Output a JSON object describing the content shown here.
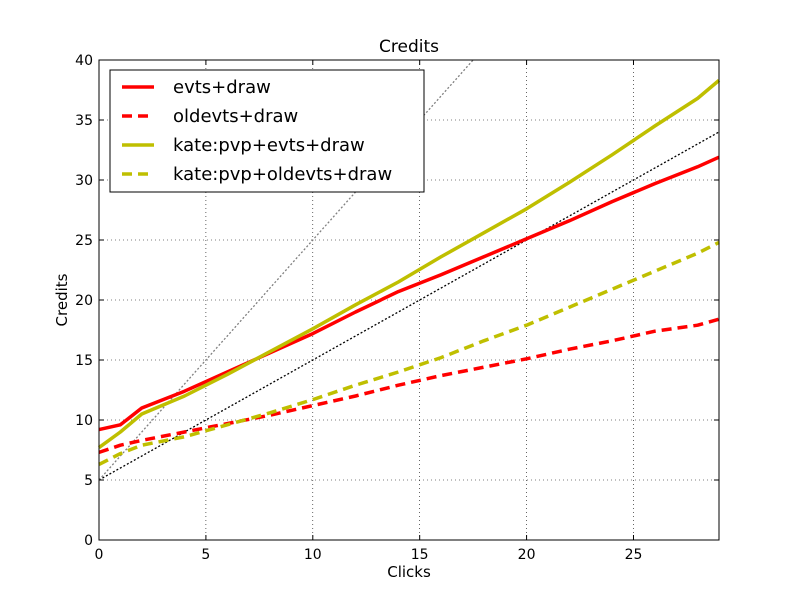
{
  "chart_data": {
    "type": "line",
    "title": "Credits",
    "xlabel": "Clicks",
    "ylabel": "Credits",
    "xlim": [
      0,
      29
    ],
    "ylim": [
      0,
      40
    ],
    "xticks": [
      "0",
      "5",
      "10",
      "15",
      "20",
      "25"
    ],
    "yticks": [
      "0",
      "5",
      "10",
      "15",
      "20",
      "25",
      "30",
      "35",
      "40"
    ],
    "grid": true,
    "legend_position": "top-left",
    "series": [
      {
        "name": "evts+draw",
        "color": "#ff0000",
        "style": "solid",
        "x": [
          0,
          1,
          2,
          4,
          6,
          8,
          10,
          12,
          14,
          16,
          18,
          20,
          22,
          24,
          26,
          28,
          29
        ],
        "y": [
          9.2,
          9.6,
          11.0,
          12.4,
          14.0,
          15.6,
          17.2,
          19.0,
          20.7,
          22.1,
          23.6,
          25.1,
          26.6,
          28.2,
          29.7,
          31.1,
          31.9
        ]
      },
      {
        "name": "oldevts+draw",
        "color": "#ff0000",
        "style": "dashed",
        "x": [
          0,
          1,
          2,
          4,
          6,
          8,
          10,
          12,
          14,
          16,
          18,
          20,
          22,
          24,
          26,
          28,
          29
        ],
        "y": [
          7.3,
          7.9,
          8.3,
          9.0,
          9.7,
          10.4,
          11.2,
          12.0,
          12.9,
          13.7,
          14.4,
          15.1,
          15.9,
          16.6,
          17.4,
          17.9,
          18.4
        ]
      },
      {
        "name": "kate:pvp+evts+draw",
        "color": "#bfbf00",
        "style": "solid",
        "x": [
          0,
          1,
          2,
          4,
          6,
          8,
          10,
          12,
          14,
          16,
          18,
          20,
          22,
          24,
          26,
          28,
          29
        ],
        "y": [
          7.7,
          9.0,
          10.5,
          12.0,
          13.8,
          15.7,
          17.6,
          19.6,
          21.5,
          23.6,
          25.6,
          27.6,
          29.8,
          32.1,
          34.5,
          36.8,
          38.3
        ]
      },
      {
        "name": "kate:pvp+oldevts+draw",
        "color": "#bfbf00",
        "style": "dashed",
        "x": [
          0,
          1,
          2,
          4,
          6,
          8,
          10,
          12,
          14,
          16,
          18,
          20,
          22,
          24,
          26,
          28,
          29
        ],
        "y": [
          6.3,
          7.2,
          7.9,
          8.6,
          9.6,
          10.6,
          11.7,
          12.9,
          14.0,
          15.2,
          16.6,
          17.9,
          19.4,
          20.9,
          22.4,
          23.9,
          24.8
        ]
      }
    ],
    "reference_lines": [
      {
        "color": "#000000",
        "style": "dotted",
        "x": [
          0,
          29
        ],
        "y": [
          5,
          34
        ]
      },
      {
        "color": "#808080",
        "style": "dotted",
        "x": [
          0,
          17.5
        ],
        "y": [
          5,
          40
        ]
      }
    ]
  }
}
